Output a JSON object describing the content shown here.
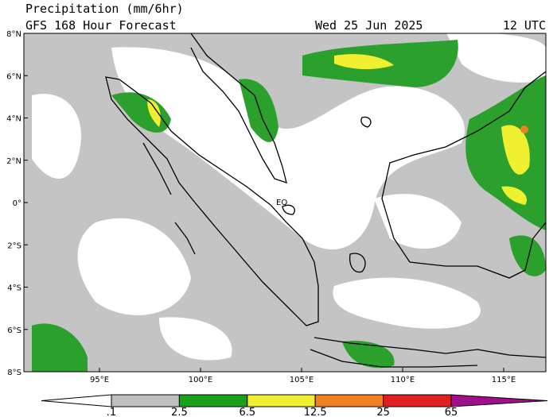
{
  "header": {
    "title": "Precipitation (mm/6hr)",
    "subtitle": "GFS 168 Hour Forecast",
    "date": "Wed 25 Jun 2025",
    "time": "12 UTC"
  },
  "map": {
    "lat_labels": [
      "8°N",
      "6°N",
      "4°N",
      "2°N",
      "0°",
      "2°S",
      "4°S",
      "6°S",
      "8°S"
    ],
    "lon_labels": [
      "95°E",
      "100°E",
      "105°E",
      "110°E",
      "115°E"
    ],
    "equator_label": "EQ"
  },
  "colorbar": {
    "labels": [
      ".1",
      "2.5",
      "6.5",
      "12.5",
      "25",
      "65"
    ],
    "colors": [
      "#ffffff",
      "#c0c0c0",
      "#1aa01a",
      "#f0f030",
      "#f08020",
      "#e02020",
      "#a0108c"
    ]
  }
}
